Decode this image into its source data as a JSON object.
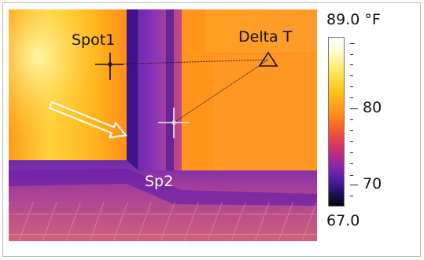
{
  "image": {
    "description": "Thermal image with measurement markers",
    "spot1_label": "Spot1",
    "spot2_label": "Sp2",
    "delta_label": "Delta T"
  },
  "scale": {
    "max_label": "89.0 °F",
    "min_label": "67.0",
    "tick_labels": [
      "80",
      "70"
    ]
  },
  "colors": {
    "palette": [
      "#ffffff",
      "#fffbd2",
      "#ffe85a",
      "#ffc31a",
      "#ff8a18",
      "#f04a3c",
      "#c22d7a",
      "#7a26b5",
      "#3a1690",
      "#130a34",
      "#050310"
    ],
    "frame": "#b9b9b9"
  },
  "icons": [
    "crosshair-icon",
    "triangle-marker-icon",
    "arrow-outline-icon"
  ]
}
